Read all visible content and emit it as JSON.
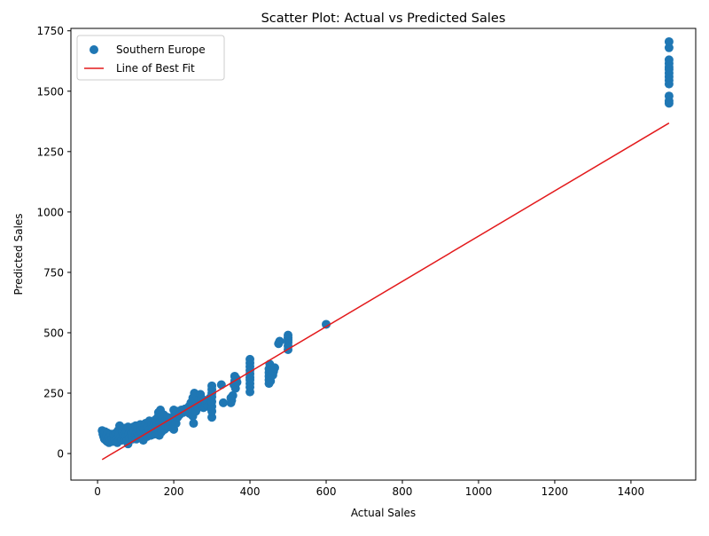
{
  "chart_data": {
    "type": "scatter",
    "title": "Scatter Plot: Actual vs Predicted Sales",
    "xlabel": "Actual Sales",
    "ylabel": "Predicted Sales",
    "xlim": [
      -70,
      1570
    ],
    "ylim": [
      -110,
      1760
    ],
    "xticks": [
      0,
      200,
      400,
      600,
      800,
      1000,
      1200,
      1400
    ],
    "yticks": [
      0,
      250,
      500,
      750,
      1000,
      1250,
      1500,
      1750
    ],
    "grid": false,
    "legend_position": "top-left",
    "legend": [
      {
        "label": "Southern Europe",
        "kind": "marker"
      },
      {
        "label": "Line of Best Fit",
        "kind": "line"
      }
    ],
    "colors": {
      "points": "#1f77b4",
      "fit_line": "#e31a1c"
    },
    "series": [
      {
        "name": "Southern Europe",
        "points": [
          [
            12,
            95
          ],
          [
            14,
            80
          ],
          [
            16,
            70
          ],
          [
            18,
            60
          ],
          [
            20,
            90
          ],
          [
            22,
            55
          ],
          [
            24,
            75
          ],
          [
            25,
            50
          ],
          [
            26,
            85
          ],
          [
            28,
            65
          ],
          [
            30,
            45
          ],
          [
            32,
            70
          ],
          [
            34,
            55
          ],
          [
            36,
            80
          ],
          [
            38,
            60
          ],
          [
            40,
            50
          ],
          [
            42,
            75
          ],
          [
            44,
            65
          ],
          [
            46,
            55
          ],
          [
            48,
            85
          ],
          [
            50,
            60
          ],
          [
            52,
            45
          ],
          [
            54,
            95
          ],
          [
            55,
            70
          ],
          [
            56,
            80
          ],
          [
            58,
            115
          ],
          [
            60,
            65
          ],
          [
            62,
            100
          ],
          [
            64,
            55
          ],
          [
            66,
            90
          ],
          [
            68,
            75
          ],
          [
            70,
            60
          ],
          [
            72,
            105
          ],
          [
            74,
            85
          ],
          [
            75,
            70
          ],
          [
            76,
            95
          ],
          [
            78,
            55
          ],
          [
            80,
            40
          ],
          [
            80,
            110
          ],
          [
            82,
            80
          ],
          [
            84,
            65
          ],
          [
            86,
            100
          ],
          [
            88,
            75
          ],
          [
            90,
            85
          ],
          [
            92,
            60
          ],
          [
            94,
            110
          ],
          [
            96,
            95
          ],
          [
            98,
            70
          ],
          [
            100,
            115
          ],
          [
            100,
            80
          ],
          [
            102,
            60
          ],
          [
            104,
            90
          ],
          [
            106,
            105
          ],
          [
            108,
            75
          ],
          [
            110,
            65
          ],
          [
            112,
            120
          ],
          [
            114,
            95
          ],
          [
            116,
            85
          ],
          [
            118,
            70
          ],
          [
            120,
            55
          ],
          [
            120,
            110
          ],
          [
            122,
            100
          ],
          [
            124,
            80
          ],
          [
            126,
            125
          ],
          [
            128,
            90
          ],
          [
            130,
            70
          ],
          [
            132,
            115
          ],
          [
            134,
            95
          ],
          [
            136,
            135
          ],
          [
            138,
            85
          ],
          [
            140,
            75
          ],
          [
            142,
            120
          ],
          [
            144,
            105
          ],
          [
            146,
            90
          ],
          [
            148,
            80
          ],
          [
            150,
            125
          ],
          [
            150,
            100
          ],
          [
            152,
            140
          ],
          [
            154,
            85
          ],
          [
            156,
            115
          ],
          [
            158,
            150
          ],
          [
            160,
            95
          ],
          [
            160,
            170
          ],
          [
            162,
            75
          ],
          [
            164,
            130
          ],
          [
            165,
            180
          ],
          [
            166,
            110
          ],
          [
            168,
            90
          ],
          [
            170,
            140
          ],
          [
            172,
            120
          ],
          [
            174,
            160
          ],
          [
            176,
            100
          ],
          [
            178,
            135
          ],
          [
            180,
            115
          ],
          [
            182,
            125
          ],
          [
            184,
            150
          ],
          [
            186,
            110
          ],
          [
            188,
            140
          ],
          [
            190,
            130
          ],
          [
            192,
            120
          ],
          [
            195,
            145
          ],
          [
            198,
            110
          ],
          [
            200,
            180
          ],
          [
            200,
            100
          ],
          [
            202,
            160
          ],
          [
            204,
            140
          ],
          [
            206,
            125
          ],
          [
            208,
            175
          ],
          [
            210,
            150
          ],
          [
            215,
            160
          ],
          [
            220,
            180
          ],
          [
            225,
            170
          ],
          [
            230,
            185
          ],
          [
            235,
            175
          ],
          [
            240,
            195
          ],
          [
            242,
            165
          ],
          [
            245,
            210
          ],
          [
            248,
            180
          ],
          [
            250,
            155
          ],
          [
            250,
            230
          ],
          [
            252,
            125
          ],
          [
            254,
            250
          ],
          [
            256,
            200
          ],
          [
            258,
            175
          ],
          [
            260,
            240
          ],
          [
            262,
            215
          ],
          [
            264,
            190
          ],
          [
            266,
            225
          ],
          [
            268,
            205
          ],
          [
            270,
            245
          ],
          [
            272,
            230
          ],
          [
            275,
            210
          ],
          [
            278,
            190
          ],
          [
            280,
            220
          ],
          [
            282,
            195
          ],
          [
            285,
            205
          ],
          [
            288,
            215
          ],
          [
            290,
            195
          ],
          [
            295,
            230
          ],
          [
            298,
            210
          ],
          [
            300,
            150
          ],
          [
            300,
            175
          ],
          [
            300,
            195
          ],
          [
            300,
            215
          ],
          [
            300,
            235
          ],
          [
            300,
            250
          ],
          [
            300,
            265
          ],
          [
            300,
            280
          ],
          [
            325,
            285
          ],
          [
            330,
            210
          ],
          [
            350,
            210
          ],
          [
            350,
            230
          ],
          [
            352,
            220
          ],
          [
            355,
            240
          ],
          [
            358,
            285
          ],
          [
            360,
            300
          ],
          [
            360,
            320
          ],
          [
            362,
            270
          ],
          [
            364,
            310
          ],
          [
            366,
            295
          ],
          [
            400,
            255
          ],
          [
            400,
            275
          ],
          [
            400,
            290
          ],
          [
            400,
            305
          ],
          [
            400,
            315
          ],
          [
            400,
            330
          ],
          [
            400,
            345
          ],
          [
            400,
            360
          ],
          [
            400,
            375
          ],
          [
            400,
            390
          ],
          [
            450,
            290
          ],
          [
            450,
            305
          ],
          [
            450,
            320
          ],
          [
            450,
            335
          ],
          [
            450,
            350
          ],
          [
            452,
            370
          ],
          [
            454,
            300
          ],
          [
            456,
            330
          ],
          [
            458,
            345
          ],
          [
            460,
            325
          ],
          [
            462,
            340
          ],
          [
            465,
            355
          ],
          [
            475,
            455
          ],
          [
            478,
            465
          ],
          [
            500,
            430
          ],
          [
            500,
            445
          ],
          [
            500,
            460
          ],
          [
            500,
            470
          ],
          [
            500,
            480
          ],
          [
            500,
            490
          ],
          [
            600,
            535
          ],
          [
            1500,
            1450
          ],
          [
            1500,
            1460
          ],
          [
            1500,
            1480
          ],
          [
            1500,
            1530
          ],
          [
            1500,
            1545
          ],
          [
            1500,
            1560
          ],
          [
            1500,
            1575
          ],
          [
            1500,
            1590
          ],
          [
            1500,
            1600
          ],
          [
            1500,
            1615
          ],
          [
            1500,
            1630
          ],
          [
            1500,
            1680
          ],
          [
            1500,
            1705
          ]
        ]
      },
      {
        "name": "Line of Best Fit",
        "x": [
          12,
          1500
        ],
        "y": [
          -25,
          1368
        ]
      }
    ]
  }
}
